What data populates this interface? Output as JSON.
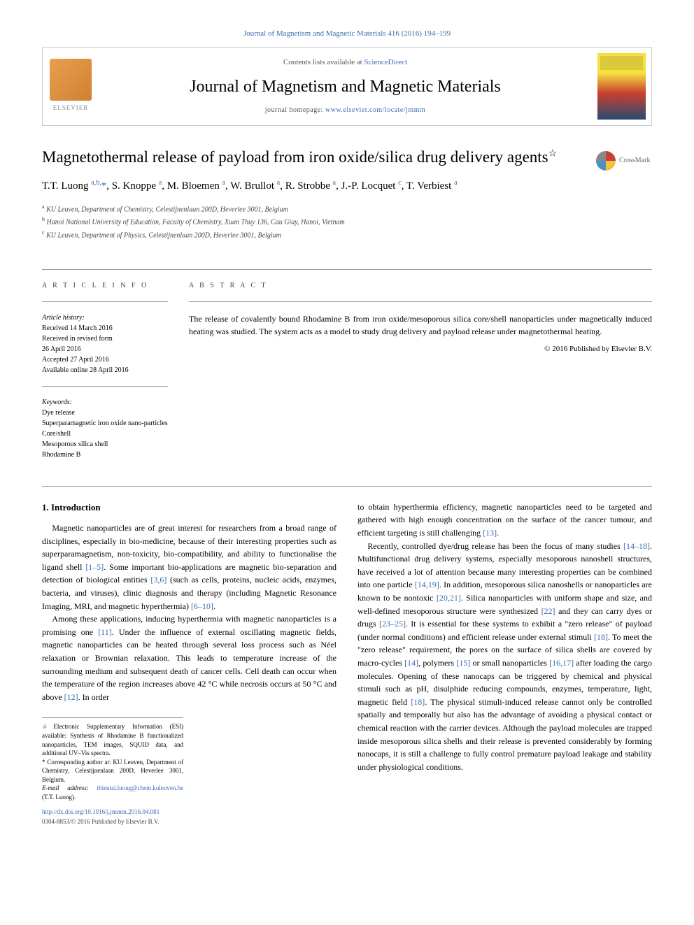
{
  "top_citation": "Journal of Magnetism and Magnetic Materials 416 (2016) 194–199",
  "header": {
    "contents_prefix": "Contents lists available at ",
    "contents_link": "ScienceDirect",
    "journal_title": "Journal of Magnetism and Magnetic Materials",
    "homepage_prefix": "journal homepage: ",
    "homepage_link": "www.elsevier.com/locate/jmmm",
    "publisher": "ELSEVIER"
  },
  "crossmark_label": "CrossMark",
  "article": {
    "title": "Magnetothermal release of payload from iron oxide/silica drug delivery agents",
    "title_note": "☆",
    "authors_html": "T.T. Luong <sup>a,b,</sup><span class='corresp'>*</span>, S. Knoppe <sup>a</sup>, M. Bloemen <sup>a</sup>, W. Brullot <sup>a</sup>, R. Strobbe <sup>a</sup>, J.-P. Locquet <sup>c</sup>, T. Verbiest <sup>a</sup>",
    "affiliations": [
      "<sup>a</sup> KU Leuven, Department of Chemistry, Celestijnenlaan 200D, Heverlee 3001, Belgium",
      "<sup>b</sup> Hanoi National University of Education, Faculty of Chemistry, Xuan Thuy 136, Cau Giay, Hanoi, Vietnam",
      "<sup>c</sup> KU Leuven, Department of Physics, Celestijnenlaan 200D, Heverlee 3001, Belgium"
    ]
  },
  "info": {
    "heading": "A R T I C L E  I N F O",
    "history_label": "Article history:",
    "history": [
      "Received 14 March 2016",
      "Received in revised form",
      "26 April 2016",
      "Accepted 27 April 2016",
      "Available online 28 April 2016"
    ],
    "keywords_label": "Keywords:",
    "keywords": [
      "Dye release",
      "Superparamagnetic iron oxide nano-particles",
      "Core/shell",
      "Mesoporous silica shell",
      "Rhodamine B"
    ]
  },
  "abstract": {
    "heading": "A B S T R A C T",
    "text": "The release of covalently bound Rhodamine B from iron oxide/mesoporous silica core/shell nanoparticles under magnetically induced heating was studied. The system acts as a model to study drug delivery and payload release under magnetothermal heating.",
    "copyright": "© 2016 Published by Elsevier B.V."
  },
  "section1_heading": "1.  Introduction",
  "col_left": {
    "p1": "Magnetic nanoparticles are of great interest for researchers from a broad range of disciplines, especially in bio-medicine, because of their interesting properties such as superparamagnetism, non-toxicity, bio-compatibility, and ability to functionalise the ligand shell <span class='ref'>[1–5]</span>. Some important bio-applications are magnetic bio-separation and detection of biological entities <span class='ref'>[3,6]</span> (such as cells, proteins, nucleic acids, enzymes, bacteria, and viruses), clinic diagnosis and therapy (including Magnetic Resonance Imaging, MRI, and magnetic hyperthermia) <span class='ref'>[6–10]</span>.",
    "p2": "Among these applications, inducing hyperthermia with magnetic nanoparticles is a promising one <span class='ref'>[11]</span>. Under the influence of external oscillating magnetic fields, magnetic nanoparticles can be heated through several loss process such as Néel relaxation or Brownian relaxation. This leads to temperature increase of the surrounding medium and subsequent death of cancer cells. Cell death can occur when the temperature of the region increases above 42 °C while necrosis occurs at 50 °C and above <span class='ref'>[12]</span>. In order"
  },
  "col_right": {
    "p1": "to obtain hyperthermia efficiency, magnetic nanoparticles need to be targeted and gathered with high enough concentration on the surface of the cancer tumour, and efficient targeting is still challenging <span class='ref'>[13]</span>.",
    "p2": "Recently, controlled dye/drug release has been the focus of many studies <span class='ref'>[14–18]</span>. Multifunctional drug delivery systems, especially mesoporous nanoshell structures, have received a lot of attention because many interesting properties can be combined into one particle <span class='ref'>[14,19]</span>. In addition, mesoporous silica nanoshells or nanoparticles are known to be nontoxic <span class='ref'>[20,21]</span>. Silica nanoparticles with uniform shape and size, and well-defined mesoporous structure were synthesized <span class='ref'>[22]</span> and they can carry dyes or drugs <span class='ref'>[23–25]</span>. It is essential for these systems to exhibit a \"zero release\" of payload (under normal conditions) and efficient release under external stimuli <span class='ref'>[18]</span>. To meet the \"zero release\" requirement, the pores on the surface of silica shells are covered by macro-cycles <span class='ref'>[14]</span>, polymers <span class='ref'>[15]</span> or small nanoparticles <span class='ref'>[16,17]</span> after loading the cargo molecules. Opening of these nanocaps can be triggered by chemical and physical stimuli such as pH, disulphide reducing compounds, enzymes, temperature, light, magnetic field <span class='ref'>[18]</span>. The physical stimuli-induced release cannot only be controlled spatially and temporally but also has the advantage of avoiding a physical contact or chemical reaction with the carrier devices. Although the payload molecules are trapped inside mesoporous silica shells and their release is prevented considerably by forming nanocaps, it is still a challenge to fully control premature payload leakage and stability under physiological conditions."
  },
  "footnotes": {
    "star": "☆Electronic Supplementary Information (ESI) available: Synthesis of Rhodamine B functionalized nanoparticles, TEM images, SQUID data, and additional UV–Vis spectra.",
    "corresp": "* Corresponding author at: KU Leuven, Department of Chemistry, Celestijnenlaan 200D, Heverlee 3001, Belgium.",
    "email_label": "E-mail address: ",
    "email": "thientai.luong@chem.kuleuven.be",
    "email_person": " (T.T. Luong)."
  },
  "bottom": {
    "doi": "http://dx.doi.org/10.1016/j.jmmm.2016.04.081",
    "issn_line": "0304-8853/© 2016 Published by Elsevier B.V."
  },
  "colors": {
    "link": "#3a6daf",
    "text": "#000000",
    "muted": "#555555",
    "border": "#999999"
  }
}
